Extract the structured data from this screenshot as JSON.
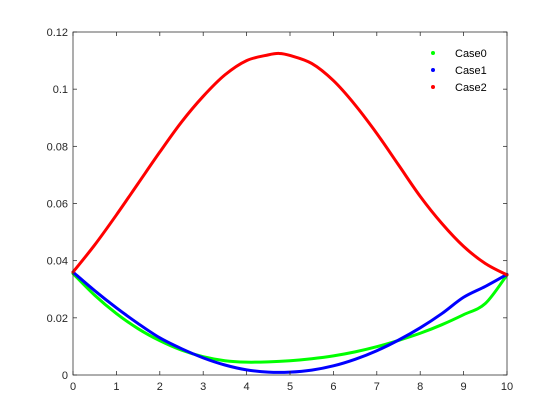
{
  "chart_data": {
    "type": "line",
    "title": "",
    "xlabel": "",
    "ylabel": "",
    "xlim": [
      0,
      10
    ],
    "ylim": [
      0,
      0.12
    ],
    "xticks": [
      0,
      1,
      2,
      3,
      4,
      5,
      6,
      7,
      8,
      9,
      10
    ],
    "xtick_labels": [
      "0",
      "1",
      "2",
      "3",
      "4",
      "5",
      "6",
      "7",
      "8",
      "9",
      "10"
    ],
    "yticks": [
      0,
      0.02,
      0.04,
      0.06,
      0.08,
      0.1,
      0.12
    ],
    "ytick_labels": [
      "0",
      "0.02",
      "0.04",
      "0.06",
      "0.08",
      "0.1",
      "0.12"
    ],
    "grid": false,
    "legend_position": "top-right",
    "series": [
      {
        "name": "Case0",
        "color": "#00ff00",
        "x": [
          0,
          0.5,
          1,
          1.5,
          2,
          2.5,
          3,
          3.5,
          4,
          4.5,
          5,
          5.5,
          6,
          6.5,
          7,
          7.5,
          8,
          8.5,
          9,
          9.5,
          10
        ],
        "y": [
          0.0355,
          0.0279,
          0.0215,
          0.0162,
          0.012,
          0.0087,
          0.0064,
          0.005,
          0.0045,
          0.0046,
          0.005,
          0.0057,
          0.0067,
          0.0081,
          0.0099,
          0.0121,
          0.0146,
          0.0176,
          0.0211,
          0.025,
          0.035
        ]
      },
      {
        "name": "Case1",
        "color": "#0000ff",
        "x": [
          0,
          0.5,
          1,
          1.5,
          2,
          2.5,
          3,
          3.5,
          4,
          4.5,
          5,
          5.5,
          6,
          6.5,
          7,
          7.5,
          8,
          8.5,
          9,
          9.5,
          10
        ],
        "y": [
          0.036,
          0.0295,
          0.0235,
          0.018,
          0.013,
          0.0092,
          0.006,
          0.0035,
          0.0018,
          0.001,
          0.001,
          0.0017,
          0.0032,
          0.0055,
          0.0085,
          0.0122,
          0.0165,
          0.0215,
          0.0272,
          0.031,
          0.0352
        ]
      },
      {
        "name": "Case2",
        "color": "#ff0000",
        "x": [
          0,
          0.5,
          1,
          1.5,
          2,
          2.5,
          3,
          3.5,
          4,
          4.5,
          4.75,
          5,
          5.5,
          6,
          6.5,
          7,
          7.5,
          8,
          8.5,
          9,
          9.5,
          10
        ],
        "y": [
          0.036,
          0.0455,
          0.056,
          0.067,
          0.078,
          0.0885,
          0.0975,
          0.105,
          0.11,
          0.112,
          0.1125,
          0.1118,
          0.109,
          0.103,
          0.0945,
          0.0845,
          0.0735,
          0.0625,
          0.053,
          0.045,
          0.039,
          0.035
        ]
      }
    ]
  }
}
